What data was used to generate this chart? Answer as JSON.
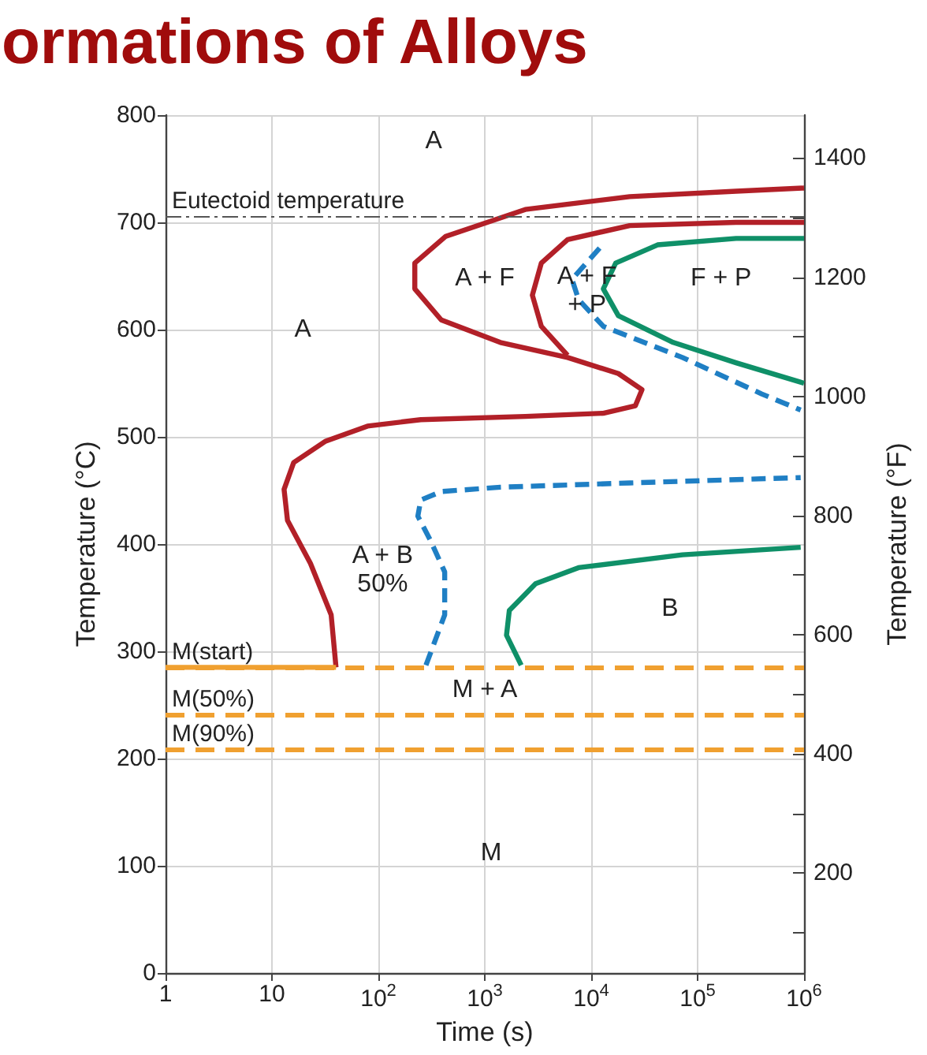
{
  "chart_data": {
    "type": "line",
    "title": "ormations of Alloys",
    "xlabel": "Time (s)",
    "ylabel": "Temperature (°C)",
    "y2label": "Temperature (°F)",
    "log": "x",
    "grid": true,
    "marker": "none",
    "xlim": [
      1,
      1000000
    ],
    "xticks": [
      1,
      10,
      {
        "value": 100,
        "label": "10$^{2}$"
      },
      {
        "value": 1000,
        "label": "10$^{3}$"
      },
      {
        "value": 10000,
        "label": "10$^{4}$"
      },
      {
        "value": 100000,
        "label": "10$^{5}$"
      },
      {
        "value": 1000000,
        "label": "10$^{6}$"
      }
    ],
    "ylim": [
      0,
      800
    ],
    "yticks": [
      0,
      100,
      200,
      300,
      400,
      500,
      600,
      700,
      800
    ],
    "y2lim": [
      32,
      1472
    ],
    "y2ticks": [
      {
        "value": 100,
        "label": null
      },
      200,
      {
        "value": 300,
        "label": null
      },
      400,
      {
        "value": 500,
        "label": null
      },
      600,
      {
        "value": 700,
        "label": null
      },
      800,
      {
        "value": 900,
        "label": null
      },
      1000,
      {
        "value": 1100,
        "label": null
      },
      1200,
      {
        "value": 1300,
        "label": null
      },
      1400
    ],
    "series": [
      {
        "color": "#b22028",
        "line_style": "solid",
        "x": [
          40,
          36,
          23,
          14,
          13,
          16,
          32,
          79,
          250,
          2400,
          13000,
          26000,
          30000,
          18000,
          6000,
          1400,
          390,
          220,
          220,
          430,
          2400,
          23000,
          230000,
          1000000
        ],
        "values": [
          285,
          334,
          382,
          422,
          451,
          476,
          496,
          510,
          516,
          519,
          522,
          529,
          544,
          559,
          574,
          588,
          609,
          638,
          662,
          687,
          712,
          724,
          729,
          732
        ]
      },
      {
        "color": "#b22028",
        "line_style": "solid",
        "x": [
          6000,
          3400,
          2800,
          3400,
          6000,
          23000,
          230000,
          1000000
        ],
        "values": [
          576,
          603,
          632,
          662,
          684,
          697,
          700,
          700
        ]
      },
      {
        "color": "#1f7fc4",
        "line_style": "dashed",
        "x": [
          12000,
          6600,
          7600,
          13000,
          72000,
          400000,
          930000
        ],
        "values": [
          676,
          647,
          628,
          603,
          574,
          540,
          525
        ]
      },
      {
        "color": "#0f9068",
        "line_style": "solid",
        "x": [
          1000000,
          230000,
          42000,
          17000,
          13000,
          18000,
          59000,
          230000,
          1000000
        ],
        "values": [
          685,
          685,
          679,
          662,
          638,
          613,
          588,
          569,
          550
        ]
      },
      {
        "color": "#1f7fc4",
        "line_style": "dashed",
        "x": [
          280,
          420,
          420,
          310,
          235,
          250,
          390,
          1400,
          23000,
          930000
        ],
        "values": [
          287,
          334,
          374,
          403,
          426,
          441,
          449,
          453,
          457,
          462
        ]
      },
      {
        "color": "#0f9068",
        "line_style": "solid",
        "x": [
          2200,
          1600,
          1700,
          3000,
          7600,
          72000,
          930000
        ],
        "values": [
          287,
          315,
          338,
          363,
          378,
          390,
          397
        ]
      },
      {
        "color": "#f0a030",
        "line_style": "solid",
        "x": [
          1,
          40
        ],
        "values": [
          285,
          285
        ]
      }
    ],
    "ref_lines": [
      {
        "axis": "y",
        "value": 706,
        "label": "Eutectoid temperature",
        "color": "#555555",
        "line_style": "dashed"
      },
      {
        "axis": "y",
        "value": 285,
        "label": "M(start)",
        "color": "#f0a030",
        "line_style": "dashed"
      },
      {
        "axis": "y",
        "value": 241,
        "label": "M(50%)",
        "color": "#f0a030",
        "line_style": "dashed"
      },
      {
        "axis": "y",
        "value": 209,
        "label": "M(90%)",
        "color": "#f0a030",
        "line_style": "dashed"
      }
    ],
    "annotations": [
      "A",
      "A",
      "A + F",
      "A + F\n+ P",
      "F + P",
      "A + B\n50%",
      "B",
      "M + A",
      "M"
    ]
  }
}
